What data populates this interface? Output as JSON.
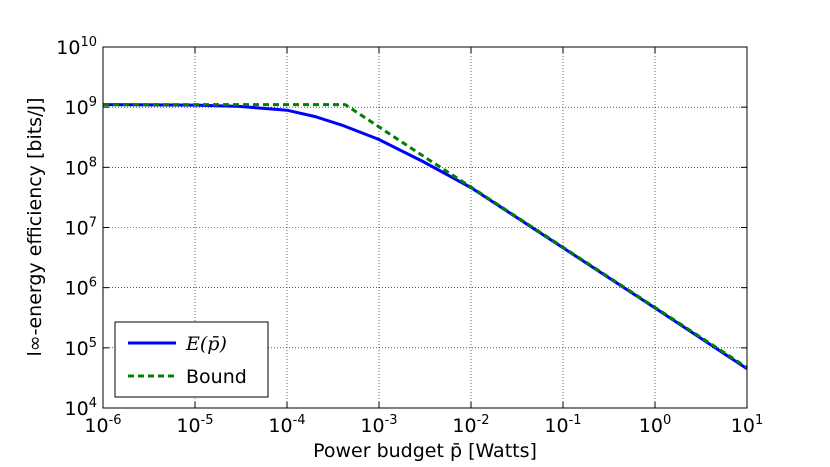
{
  "chart_data": {
    "type": "line",
    "title": "",
    "xlabel": "Power budget p̄ [Watts]",
    "ylabel": "l∞-energy efficiency [bits/J]",
    "xscale": "log",
    "yscale": "log",
    "xlim": [
      1e-06,
      10
    ],
    "ylim": [
      10000.0,
      10000000000.0
    ],
    "x_tick_exponents": [
      "-6",
      "-5",
      "-4",
      "-3",
      "-2",
      "-1",
      "0",
      "1"
    ],
    "y_tick_exponents": [
      "4",
      "5",
      "6",
      "7",
      "8",
      "9",
      "10"
    ],
    "tick_base": "10",
    "grid": true,
    "legend_position": "bottom-left",
    "series": [
      {
        "name": "E(p̄)",
        "style": "solid",
        "color": "#0000ff",
        "x": [
          1e-06,
          1e-05,
          3e-05,
          0.0001,
          0.0002,
          0.0004,
          0.001,
          0.003,
          0.01,
          0.1,
          1,
          10
        ],
        "y": [
          1100000000.0,
          1080000000.0,
          1030000000.0,
          890000000.0,
          700000000.0,
          500000000.0,
          290000000.0,
          125000000.0,
          46000000.0,
          4600000.0,
          460000.0,
          45000.0
        ]
      },
      {
        "name": "Bound",
        "style": "dashed",
        "color": "#008000",
        "x": [
          1e-06,
          1e-05,
          0.0001,
          0.00043,
          0.001,
          0.003,
          0.01,
          0.1,
          1,
          10
        ],
        "y": [
          1100000000.0,
          1100000000.0,
          1100000000.0,
          1100000000.0,
          470000000.0,
          155000000.0,
          47000000.0,
          4700000.0,
          470000.0,
          47000.0
        ]
      }
    ]
  }
}
